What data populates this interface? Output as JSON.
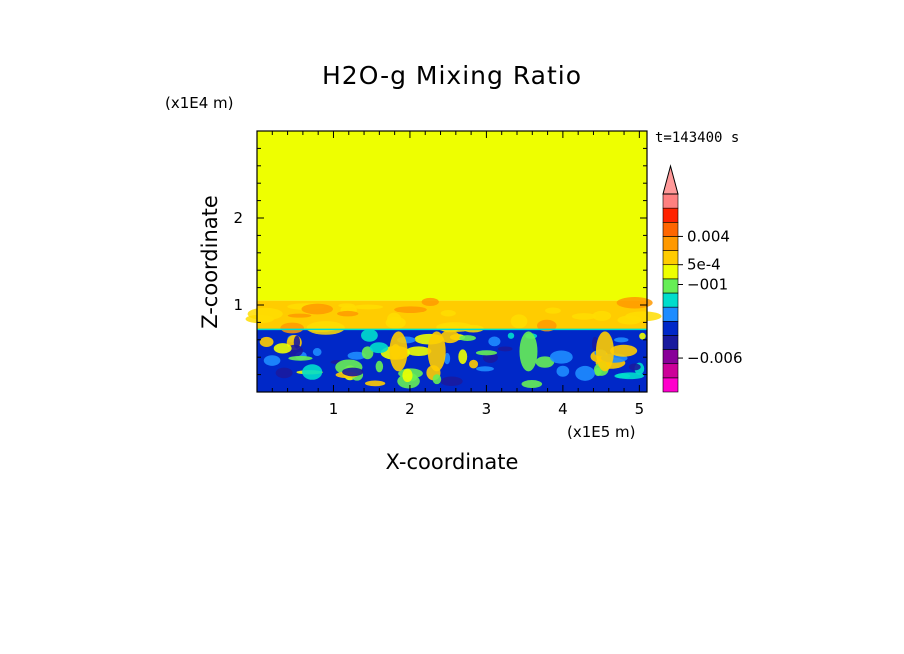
{
  "chart_data": {
    "type": "heatmap",
    "title": "H2O-g Mixing Ratio",
    "xlabel": "X-coordinate",
    "ylabel": "Z-coordinate",
    "x_multiplier": "(x1E5 m)",
    "y_multiplier": "(x1E4 m)",
    "time_label": "t=143400 s",
    "xlim": [
      0,
      5.1
    ],
    "ylim": [
      0,
      3
    ],
    "x_ticks": [
      1,
      2,
      3,
      4,
      5
    ],
    "y_ticks": [
      1,
      2
    ],
    "layers": [
      {
        "name": "upper",
        "z_range": [
          1.05,
          3
        ],
        "color": "#eeff00"
      },
      {
        "name": "transition",
        "z_range": [
          0.72,
          1.05
        ],
        "color": "#ffcc00"
      },
      {
        "name": "lower",
        "z_range": [
          0,
          0.72
        ],
        "color": "#0028c8"
      }
    ],
    "colorbar": {
      "levels": [
        {
          "color": "#ff00cc"
        },
        {
          "color": "#cc0099"
        },
        {
          "color": "#880099"
        },
        {
          "color": "#1a1a9e"
        },
        {
          "color": "#0028c8"
        },
        {
          "color": "#1e8cff"
        },
        {
          "color": "#00ddcc"
        },
        {
          "color": "#66ee55"
        },
        {
          "color": "#eeff00"
        },
        {
          "color": "#ffcc00"
        },
        {
          "color": "#ff9900"
        },
        {
          "color": "#ff6600"
        },
        {
          "color": "#ff2200"
        },
        {
          "color": "#ff8080"
        }
      ],
      "tick_labels": [
        {
          "label": "0.004",
          "level": 11
        },
        {
          "label": "5e-4",
          "level": 9
        },
        {
          "label": "−001",
          "level": 7.6
        },
        {
          "label": "−0.006",
          "level": 2.4
        }
      ],
      "extend": "max"
    }
  }
}
